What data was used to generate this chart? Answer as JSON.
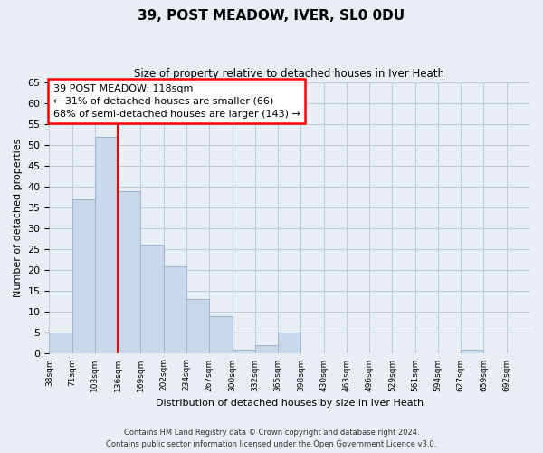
{
  "title": "39, POST MEADOW, IVER, SL0 0DU",
  "subtitle": "Size of property relative to detached houses in Iver Heath",
  "xlabel": "Distribution of detached houses by size in Iver Heath",
  "ylabel": "Number of detached properties",
  "bin_labels": [
    "38sqm",
    "71sqm",
    "103sqm",
    "136sqm",
    "169sqm",
    "202sqm",
    "234sqm",
    "267sqm",
    "300sqm",
    "332sqm",
    "365sqm",
    "398sqm",
    "430sqm",
    "463sqm",
    "496sqm",
    "529sqm",
    "561sqm",
    "594sqm",
    "627sqm",
    "659sqm",
    "692sqm"
  ],
  "bar_values": [
    5,
    37,
    52,
    39,
    26,
    21,
    13,
    9,
    1,
    2,
    5,
    0,
    0,
    0,
    0,
    0,
    0,
    0,
    1,
    0,
    0
  ],
  "bar_color": "#c8d8ea",
  "bar_edge_color": "#9ab4cc",
  "reference_line_x": 3,
  "annotation_title": "39 POST MEADOW: 118sqm",
  "annotation_line1": "← 31% of detached houses are smaller (66)",
  "annotation_line2": "68% of semi-detached houses are larger (143) →",
  "annotation_box_color": "white",
  "annotation_box_edge_color": "red",
  "ylim": [
    0,
    65
  ],
  "yticks": [
    0,
    5,
    10,
    15,
    20,
    25,
    30,
    35,
    40,
    45,
    50,
    55,
    60,
    65
  ],
  "footer_line1": "Contains HM Land Registry data © Crown copyright and database right 2024.",
  "footer_line2": "Contains public sector information licensed under the Open Government Licence v3.0.",
  "bg_color": "#e8eef4",
  "plot_bg_color": "#e8eef4",
  "grid_color": "#c0ccd8"
}
